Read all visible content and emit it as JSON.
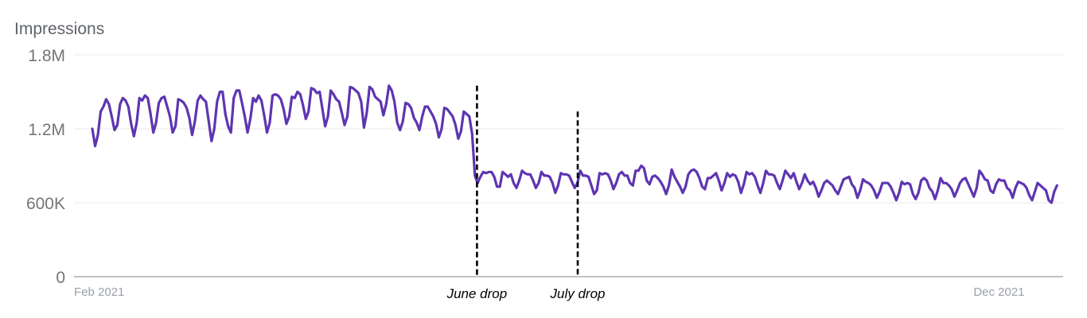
{
  "chart_data": {
    "type": "line",
    "ylabel": "Impressions",
    "ylim": [
      0,
      1800000
    ],
    "yticks": [
      {
        "value": 0,
        "label": "0"
      },
      {
        "value": 600000,
        "label": "600K"
      },
      {
        "value": 1200000,
        "label": "1.2M"
      },
      {
        "value": 1800000,
        "label": "1.8M"
      }
    ],
    "xticks": [
      {
        "value": "2021-02-01",
        "label": "Feb 2021"
      },
      {
        "value": "2021-12-01",
        "label": "Dec 2021"
      }
    ],
    "grid": true,
    "colors": {
      "series": "#5e35b1",
      "annotation": "#000000"
    },
    "annotations": [
      {
        "x": "2021-06-13",
        "y": 1550000,
        "label": "June drop"
      },
      {
        "x": "2021-07-16",
        "y": 1340000,
        "label": "July drop"
      }
    ],
    "series": [
      {
        "name": "",
        "x_start": "2021-02-07",
        "x_end": "2021-12-20",
        "values": [
          1200000,
          1060000,
          1150000,
          1340000,
          1380000,
          1440000,
          1400000,
          1300000,
          1190000,
          1230000,
          1400000,
          1450000,
          1430000,
          1380000,
          1240000,
          1140000,
          1250000,
          1450000,
          1430000,
          1470000,
          1450000,
          1320000,
          1170000,
          1250000,
          1410000,
          1450000,
          1460000,
          1380000,
          1300000,
          1170000,
          1220000,
          1440000,
          1430000,
          1410000,
          1370000,
          1290000,
          1150000,
          1260000,
          1430000,
          1470000,
          1440000,
          1420000,
          1260000,
          1100000,
          1200000,
          1420000,
          1500000,
          1500000,
          1320000,
          1220000,
          1170000,
          1450000,
          1510000,
          1510000,
          1410000,
          1300000,
          1170000,
          1280000,
          1450000,
          1420000,
          1470000,
          1430000,
          1310000,
          1170000,
          1250000,
          1470000,
          1480000,
          1470000,
          1440000,
          1360000,
          1240000,
          1300000,
          1460000,
          1450000,
          1500000,
          1480000,
          1390000,
          1280000,
          1340000,
          1530000,
          1520000,
          1490000,
          1500000,
          1360000,
          1220000,
          1300000,
          1510000,
          1480000,
          1440000,
          1420000,
          1330000,
          1230000,
          1300000,
          1540000,
          1530000,
          1510000,
          1490000,
          1420000,
          1210000,
          1330000,
          1540000,
          1520000,
          1460000,
          1440000,
          1420000,
          1310000,
          1400000,
          1550000,
          1510000,
          1420000,
          1250000,
          1190000,
          1260000,
          1410000,
          1400000,
          1370000,
          1290000,
          1250000,
          1190000,
          1300000,
          1380000,
          1380000,
          1340000,
          1300000,
          1240000,
          1130000,
          1200000,
          1370000,
          1360000,
          1330000,
          1300000,
          1230000,
          1120000,
          1180000,
          1340000,
          1320000,
          1300000,
          1160000,
          820000,
          760000,
          810000,
          850000,
          840000,
          850000,
          850000,
          810000,
          730000,
          730000,
          850000,
          830000,
          810000,
          830000,
          760000,
          720000,
          780000,
          860000,
          840000,
          830000,
          830000,
          780000,
          720000,
          760000,
          850000,
          820000,
          820000,
          810000,
          760000,
          680000,
          740000,
          840000,
          830000,
          830000,
          820000,
          770000,
          720000,
          760000,
          860000,
          820000,
          820000,
          810000,
          740000,
          670000,
          700000,
          840000,
          830000,
          840000,
          830000,
          780000,
          710000,
          760000,
          830000,
          850000,
          820000,
          820000,
          760000,
          740000,
          860000,
          860000,
          900000,
          880000,
          780000,
          750000,
          810000,
          820000,
          800000,
          770000,
          730000,
          670000,
          740000,
          870000,
          810000,
          770000,
          730000,
          680000,
          730000,
          830000,
          860000,
          870000,
          850000,
          800000,
          730000,
          710000,
          800000,
          800000,
          820000,
          840000,
          780000,
          700000,
          760000,
          840000,
          810000,
          830000,
          820000,
          770000,
          680000,
          750000,
          850000,
          830000,
          840000,
          810000,
          740000,
          680000,
          760000,
          860000,
          830000,
          830000,
          820000,
          760000,
          710000,
          780000,
          860000,
          830000,
          800000,
          840000,
          770000,
          710000,
          760000,
          830000,
          780000,
          750000,
          770000,
          720000,
          650000,
          700000,
          760000,
          780000,
          760000,
          740000,
          700000,
          670000,
          730000,
          790000,
          800000,
          810000,
          750000,
          720000,
          640000,
          700000,
          790000,
          770000,
          760000,
          740000,
          700000,
          640000,
          690000,
          760000,
          760000,
          760000,
          730000,
          680000,
          620000,
          680000,
          770000,
          750000,
          760000,
          750000,
          670000,
          630000,
          680000,
          780000,
          800000,
          780000,
          720000,
          690000,
          630000,
          700000,
          800000,
          760000,
          760000,
          740000,
          710000,
          650000,
          700000,
          760000,
          790000,
          800000,
          750000,
          700000,
          650000,
          720000,
          860000,
          830000,
          790000,
          780000,
          700000,
          680000,
          750000,
          790000,
          780000,
          780000,
          720000,
          700000,
          640000,
          720000,
          770000,
          760000,
          750000,
          720000,
          660000,
          620000,
          690000,
          760000,
          740000,
          720000,
          700000,
          620000,
          600000,
          690000,
          740000
        ]
      }
    ]
  }
}
